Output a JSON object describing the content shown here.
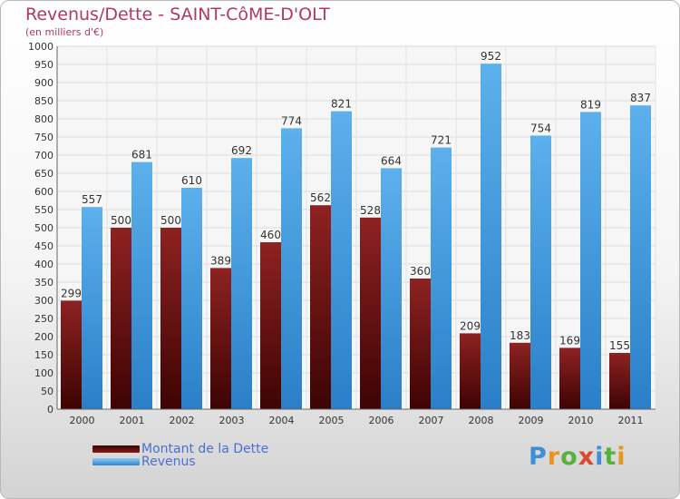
{
  "colors": {
    "debt": "#7a1010",
    "revenue": "#4ea6e6",
    "title": "#b03a5b",
    "legend_text": "#4a6fd6"
  },
  "logo": {
    "text": "Proxiti",
    "letter_colors": [
      "#3d8fd8",
      "#e8961c",
      "#55b23a",
      "#d84a2a",
      "#3d8fd8",
      "#55b23a",
      "#e8961c"
    ]
  },
  "chart_data": {
    "type": "bar",
    "title": "Revenus/Dette - SAINT-CôME-D'OLT",
    "subtitle": "(en milliers d'€)",
    "categories": [
      "2000",
      "2001",
      "2002",
      "2003",
      "2004",
      "2005",
      "2006",
      "2007",
      "2008",
      "2009",
      "2010",
      "2011"
    ],
    "series": [
      {
        "name": "Montant de la Dette",
        "values": [
          299,
          500,
          500,
          389,
          460,
          562,
          528,
          360,
          209,
          183,
          169,
          155
        ]
      },
      {
        "name": "Revenus",
        "values": [
          557,
          681,
          610,
          692,
          774,
          821,
          664,
          721,
          952,
          754,
          819,
          837
        ]
      }
    ],
    "ylim": [
      0,
      1000
    ],
    "ytick_step": 50,
    "grid": true,
    "legend": "bottom-left"
  }
}
